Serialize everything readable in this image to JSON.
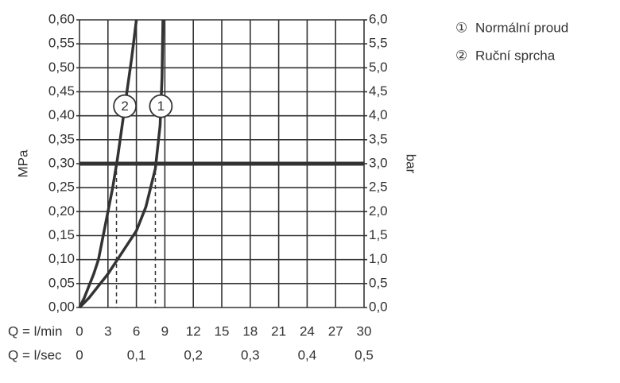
{
  "chart_data": {
    "type": "line",
    "x_label": "Q = l/min",
    "x2_label": "Q = l/sec",
    "y_label": "MPa",
    "y2_label": "bar",
    "xlim": [
      0,
      30
    ],
    "xticks": [
      0,
      3,
      6,
      9,
      12,
      15,
      18,
      21,
      24,
      27,
      30
    ],
    "x2lim": [
      0,
      0.5
    ],
    "x2ticks": [
      0,
      {
        "value": 0.1,
        "label": "0,1"
      },
      {
        "value": 0.2,
        "label": "0,2"
      },
      {
        "value": 0.3,
        "label": "0,3"
      },
      {
        "value": 0.4,
        "label": "0,4"
      },
      {
        "value": 0.5,
        "label": "0,5"
      }
    ],
    "ylim": [
      0,
      0.6
    ],
    "yticks": [
      {
        "value": 0,
        "label": "0,00"
      },
      {
        "value": 0.05,
        "label": "0,05"
      },
      {
        "value": 0.1,
        "label": "0,10"
      },
      {
        "value": 0.15,
        "label": "0,15"
      },
      {
        "value": 0.2,
        "label": "0,20"
      },
      {
        "value": 0.25,
        "label": "0,25"
      },
      {
        "value": 0.3,
        "label": "0,30"
      },
      {
        "value": 0.35,
        "label": "0,35"
      },
      {
        "value": 0.4,
        "label": "0,40"
      },
      {
        "value": 0.45,
        "label": "0,45"
      },
      {
        "value": 0.5,
        "label": "0,50"
      },
      {
        "value": 0.55,
        "label": "0,55"
      },
      {
        "value": 0.6,
        "label": "0,60"
      }
    ],
    "y2lim": [
      0,
      6
    ],
    "y2ticks": [
      {
        "value": 0,
        "label": "0,0"
      },
      {
        "value": 0.5,
        "label": "0,5"
      },
      {
        "value": 1,
        "label": "1,0"
      },
      {
        "value": 1.5,
        "label": "1,5"
      },
      {
        "value": 2,
        "label": "2,0"
      },
      {
        "value": 2.5,
        "label": "2,5"
      },
      {
        "value": 3,
        "label": "3,0"
      },
      {
        "value": 3.5,
        "label": "3,5"
      },
      {
        "value": 4,
        "label": "4,0"
      },
      {
        "value": 4.5,
        "label": "4,5"
      },
      {
        "value": 5,
        "label": "5,0"
      },
      {
        "value": 5.5,
        "label": "5,5"
      },
      {
        "value": 6,
        "label": "6,0"
      }
    ],
    "grid": true,
    "color": "#333333",
    "series": [
      {
        "name": "Normální proud",
        "symbol": "①",
        "label": "1",
        "color": "#333333",
        "x": [
          0,
          1,
          2,
          3,
          4,
          5,
          6,
          7,
          8,
          8.5,
          8.7,
          8.8
        ],
        "values": [
          0,
          0.02,
          0.045,
          0.07,
          0.1,
          0.13,
          0.16,
          0.21,
          0.29,
          0.38,
          0.48,
          0.6
        ]
      },
      {
        "name": "Ruční sprcha",
        "symbol": "②",
        "label": "2",
        "color": "#333333",
        "x": [
          0,
          0.5,
          1,
          1.5,
          2,
          2.5,
          3,
          3.5,
          4,
          4.5,
          5,
          5.5,
          6
        ],
        "values": [
          0,
          0.02,
          0.045,
          0.07,
          0.1,
          0.15,
          0.2,
          0.25,
          0.31,
          0.38,
          0.45,
          0.52,
          0.6
        ]
      }
    ],
    "reference_lines": [
      {
        "y": 0.3
      }
    ],
    "drop_lines": [
      {
        "x": 3.9,
        "y": 0.3
      },
      {
        "x": 8,
        "y": 0.3
      }
    ]
  }
}
